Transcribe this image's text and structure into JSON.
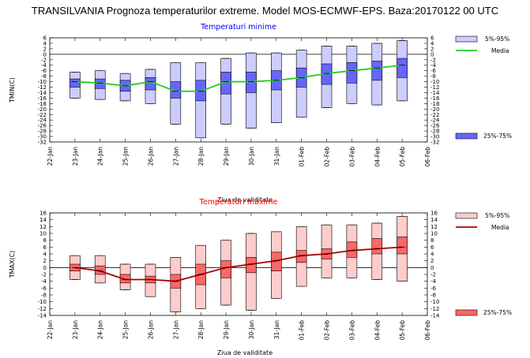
{
  "title": "TRANSILVANIA  Prognoza temperaturilor extreme.  Model MOS-ECMWF-EPS. Baza:20170122 00 UTC",
  "chart_data": [
    {
      "type": "boxplot",
      "title": "Temperaturi minime",
      "title_color": "#0000ff",
      "ylabel": "TMIN(C)",
      "xlabel": "Ziua de validitate",
      "ylim": [
        -32,
        6
      ],
      "yticks": [
        6,
        4,
        2,
        0,
        -2,
        -4,
        -6,
        -8,
        -10,
        -12,
        -14,
        -16,
        -18,
        -20,
        -22,
        -24,
        -26,
        -28,
        -30,
        -32
      ],
      "categories": [
        "22-Jan",
        "23-Jan",
        "24-Jan",
        "25-Jan",
        "26-Jan",
        "27-Jan",
        "28-Jan",
        "29-Jan",
        "30-Jan",
        "31-Jan",
        "01-Feb",
        "02-Feb",
        "03-Feb",
        "04-Feb",
        "05-Feb",
        "06-Feb"
      ],
      "grid": false,
      "box_color": "#6666ff",
      "whisker_band_color": "#ccccff",
      "median_color": "#22cc22",
      "legend": [
        "5%-95%",
        "Media",
        "25%-75%"
      ],
      "series": {
        "days": [
          "23-Jan",
          "24-Jan",
          "25-Jan",
          "26-Jan",
          "27-Jan",
          "28-Jan",
          "29-Jan",
          "30-Jan",
          "31-Jan",
          "01-Feb",
          "02-Feb",
          "03-Feb",
          "04-Feb",
          "05-Feb"
        ],
        "p5": [
          -16,
          -16.5,
          -17,
          -18,
          -25.5,
          -30.5,
          -25.5,
          -27,
          -25,
          -23,
          -19.5,
          -18,
          -18.5,
          -17
        ],
        "p95": [
          -6.5,
          -6,
          -7,
          -5.5,
          -3,
          -3,
          -1.5,
          0.5,
          0.5,
          1.5,
          3,
          3,
          4,
          5
        ],
        "p25": [
          -12,
          -12.5,
          -13.5,
          -13,
          -16,
          -17,
          -14.5,
          -14,
          -13,
          -12,
          -11,
          -10.5,
          -9.5,
          -8.5
        ],
        "p75": [
          -9,
          -9,
          -9.5,
          -8.5,
          -10,
          -9.5,
          -6.5,
          -6.5,
          -6,
          -5,
          -3.5,
          -3,
          -2.5,
          -1.5
        ],
        "median": [
          -10,
          -10.5,
          -11.5,
          -10,
          -13.5,
          -13.5,
          -10,
          -10,
          -9.5,
          -8.5,
          -7,
          -6,
          -5,
          -4
        ]
      }
    },
    {
      "type": "boxplot",
      "title": "Temperaturi maxime",
      "title_color": "#ff0000",
      "ylabel": "TMAX(C)",
      "xlabel": "Ziua de validitate",
      "ylim": [
        -14,
        16
      ],
      "yticks": [
        16,
        14,
        12,
        10,
        8,
        6,
        4,
        2,
        0,
        -2,
        -4,
        -6,
        -8,
        -10,
        -12,
        -14
      ],
      "categories": [
        "22-Jan",
        "23-Jan",
        "24-Jan",
        "25-Jan",
        "26-Jan",
        "27-Jan",
        "28-Jan",
        "29-Jan",
        "30-Jan",
        "31-Jan",
        "01-Feb",
        "02-Feb",
        "03-Feb",
        "04-Feb",
        "05-Feb",
        "06-Feb"
      ],
      "grid": false,
      "box_color": "#ff6666",
      "whisker_band_color": "#ffcccc",
      "median_color": "#aa0000",
      "legend": [
        "5%-95%",
        "Media",
        "25%-75%"
      ],
      "series": {
        "days": [
          "23-Jan",
          "24-Jan",
          "25-Jan",
          "26-Jan",
          "27-Jan",
          "28-Jan",
          "29-Jan",
          "30-Jan",
          "31-Jan",
          "01-Feb",
          "02-Feb",
          "03-Feb",
          "04-Feb",
          "05-Feb"
        ],
        "p5": [
          -3.5,
          -4.5,
          -6.5,
          -8.5,
          -13,
          -12,
          -11,
          -12.5,
          -9,
          -5.5,
          -3,
          -3,
          -3.5,
          -4
        ],
        "p95": [
          3.5,
          3.5,
          1,
          1,
          3,
          6.5,
          8,
          10,
          10.5,
          12,
          12.5,
          12.5,
          13,
          15
        ],
        "p25": [
          -1,
          -2,
          -4.5,
          -4.5,
          -6,
          -5,
          -3,
          -1.5,
          -1,
          1.5,
          2.5,
          3,
          4,
          4
        ],
        "p75": [
          1,
          0.5,
          -2,
          -2.5,
          -2,
          1,
          2,
          3,
          4.5,
          5,
          5.5,
          7.5,
          8.5,
          9
        ],
        "median": [
          0,
          -1,
          -3.5,
          -3.5,
          -4,
          -2,
          0,
          1,
          2,
          3.5,
          4,
          5,
          5.5,
          6
        ]
      }
    }
  ]
}
